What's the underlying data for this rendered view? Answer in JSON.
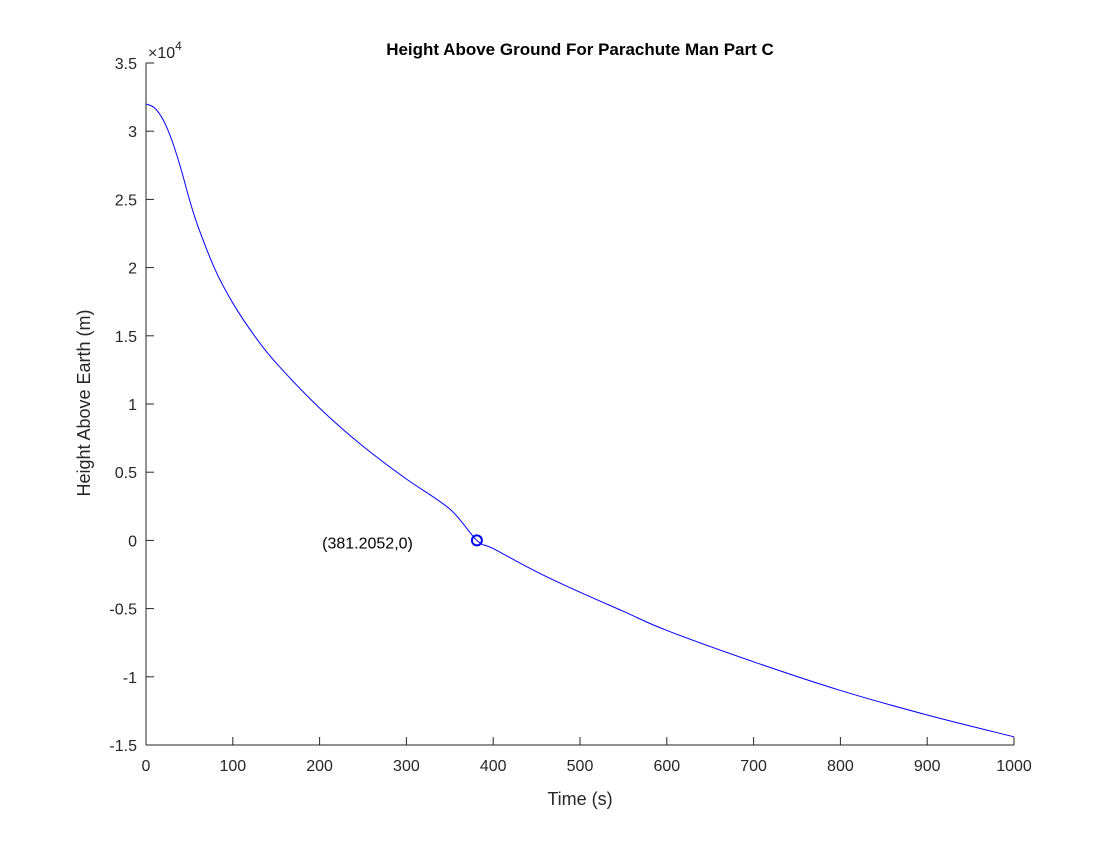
{
  "chart_data": {
    "type": "line",
    "title": "Height Above Ground For Parachute Man Part C",
    "xlabel": "Time (s)",
    "ylabel": "Height Above Earth (m)",
    "xlim": [
      0,
      1000
    ],
    "ylim": [
      -15000,
      35000
    ],
    "x_ticks": [
      0,
      100,
      200,
      300,
      400,
      500,
      600,
      700,
      800,
      900,
      1000
    ],
    "x_tick_labels": [
      "0",
      "100",
      "200",
      "300",
      "400",
      "500",
      "600",
      "700",
      "800",
      "900",
      "1000"
    ],
    "y_ticks": [
      -15000,
      -10000,
      -5000,
      0,
      5000,
      10000,
      15000,
      20000,
      25000,
      30000,
      35000
    ],
    "y_tick_labels": [
      "-1.5",
      "-1",
      "-0.5",
      "0",
      "0.5",
      "1",
      "1.5",
      "2",
      "2.5",
      "3",
      "3.5"
    ],
    "y_exponent_label": "×10",
    "y_exponent_power": "4",
    "grid": false,
    "series": [
      {
        "color": "#0000ff",
        "x": [
          0,
          10,
          20,
          30,
          40,
          50,
          60,
          80,
          100,
          125,
          150,
          200,
          250,
          300,
          350,
          381.2052,
          400,
          450,
          500,
          550,
          600,
          700,
          800,
          900,
          1000
        ],
        "y": [
          32000,
          31700,
          30800,
          29300,
          27300,
          25000,
          23000,
          19800,
          17400,
          15000,
          13000,
          9700,
          6900,
          4500,
          2300,
          0,
          -600,
          -2300,
          -3800,
          -5200,
          -6600,
          -8900,
          -11000,
          -12800,
          -14400
        ]
      }
    ],
    "annotations": [
      {
        "x": 381.2052,
        "y": 0,
        "text": "(381.2052,0)",
        "marker": "circle",
        "color": "#0000ff"
      }
    ]
  }
}
